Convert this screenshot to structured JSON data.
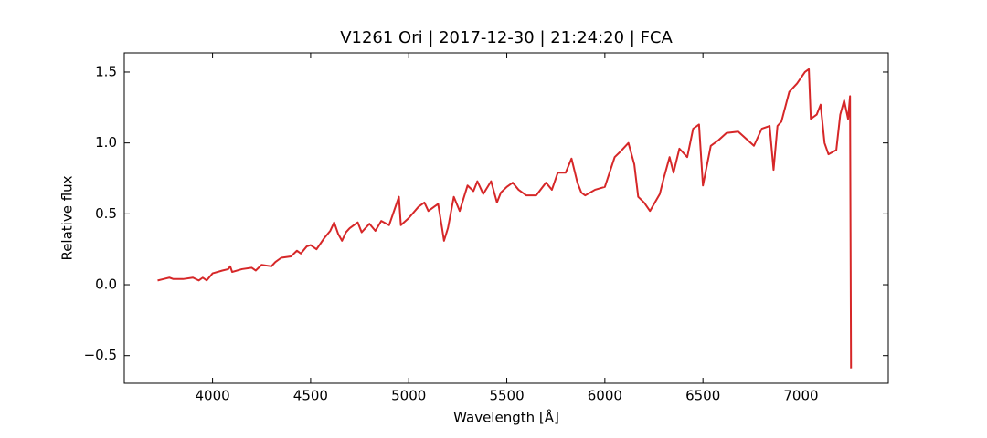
{
  "chart_data": {
    "type": "line",
    "title": "V1261 Ori | 2017-12-30 | 21:24:20 | FCA",
    "x_label": "Wavelength [Å]",
    "y_label": "Relative flux",
    "xlim": [
      3550,
      7445
    ],
    "ylim": [
      -0.695,
      1.635
    ],
    "xticks": [
      4000,
      4500,
      5000,
      5500,
      6000,
      6500,
      7000
    ],
    "yticks": [
      {
        "value": -0.5,
        "label": "−0.5"
      },
      {
        "value": 0,
        "label": "0.0"
      },
      0.5,
      {
        "value": 1,
        "label": "1.0"
      },
      1.5
    ],
    "x": [
      3720,
      3750,
      3780,
      3800,
      3850,
      3900,
      3930,
      3950,
      3970,
      4000,
      4050,
      4080,
      4090,
      4100,
      4150,
      4200,
      4220,
      4250,
      4300,
      4320,
      4350,
      4400,
      4430,
      4450,
      4480,
      4500,
      4530,
      4570,
      4600,
      4620,
      4640,
      4660,
      4680,
      4700,
      4740,
      4760,
      4800,
      4830,
      4860,
      4900,
      4930,
      4950,
      4960,
      5000,
      5050,
      5080,
      5100,
      5150,
      5170,
      5180,
      5200,
      5230,
      5260,
      5300,
      5330,
      5350,
      5380,
      5420,
      5450,
      5470,
      5500,
      5530,
      5560,
      5600,
      5650,
      5700,
      5730,
      5760,
      5800,
      5830,
      5860,
      5880,
      5900,
      5950,
      6000,
      6050,
      6080,
      6120,
      6150,
      6170,
      6200,
      6230,
      6280,
      6300,
      6330,
      6350,
      6380,
      6420,
      6450,
      6480,
      6500,
      6540,
      6580,
      6620,
      6680,
      6720,
      6760,
      6800,
      6840,
      6860,
      6880,
      6900,
      6940,
      6980,
      7020,
      7040,
      7050,
      7080,
      7100,
      7120,
      7140,
      7180,
      7200,
      7220,
      7240,
      7250,
      7255
    ],
    "series": [
      {
        "name": "flux",
        "color": "#d62728",
        "values": [
          0.03,
          0.04,
          0.05,
          0.04,
          0.04,
          0.05,
          0.03,
          0.05,
          0.03,
          0.08,
          0.1,
          0.11,
          0.13,
          0.09,
          0.11,
          0.12,
          0.1,
          0.14,
          0.13,
          0.16,
          0.19,
          0.2,
          0.24,
          0.22,
          0.27,
          0.28,
          0.25,
          0.33,
          0.38,
          0.44,
          0.36,
          0.31,
          0.37,
          0.4,
          0.44,
          0.37,
          0.43,
          0.38,
          0.45,
          0.42,
          0.54,
          0.62,
          0.42,
          0.47,
          0.55,
          0.58,
          0.52,
          0.57,
          0.4,
          0.31,
          0.4,
          0.62,
          0.52,
          0.7,
          0.66,
          0.73,
          0.64,
          0.73,
          0.58,
          0.65,
          0.69,
          0.72,
          0.67,
          0.63,
          0.63,
          0.72,
          0.67,
          0.79,
          0.79,
          0.89,
          0.72,
          0.65,
          0.63,
          0.67,
          0.69,
          0.9,
          0.94,
          1.0,
          0.85,
          0.62,
          0.58,
          0.52,
          0.64,
          0.75,
          0.9,
          0.79,
          0.96,
          0.9,
          1.1,
          1.13,
          0.7,
          0.98,
          1.02,
          1.07,
          1.08,
          1.03,
          0.98,
          1.1,
          1.12,
          0.81,
          1.12,
          1.15,
          1.36,
          1.42,
          1.5,
          1.52,
          1.17,
          1.2,
          1.27,
          1.0,
          0.92,
          0.95,
          1.2,
          1.3,
          1.17,
          1.33,
          -0.59
        ]
      }
    ]
  }
}
